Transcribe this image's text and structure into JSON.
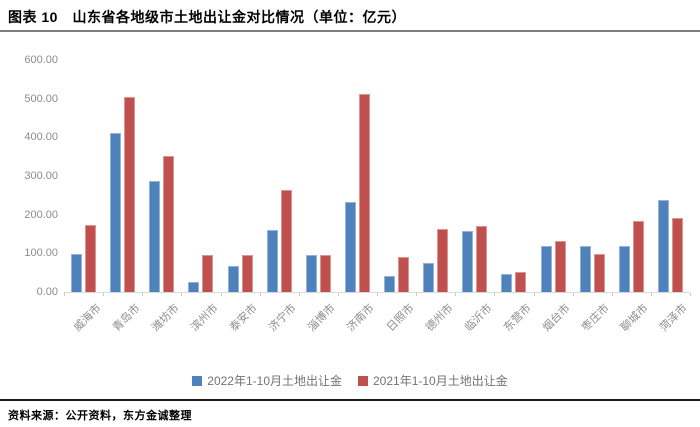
{
  "header": {
    "title": "图表 10　山东省各地级市土地出让金对比情况（单位：亿元）"
  },
  "footer": {
    "source": "资料来源：公开资料，东方金诚整理"
  },
  "chart_data": {
    "type": "bar",
    "title": "",
    "xlabel": "",
    "ylabel": "",
    "ylim": [
      0,
      600
    ],
    "ytick_step": 100,
    "y_ticks": [
      "600.00",
      "500.00",
      "400.00",
      "300.00",
      "200.00",
      "100.00",
      "0.00"
    ],
    "grid": false,
    "legend_position": "bottom",
    "categories": [
      "威海市",
      "青岛市",
      "潍坊市",
      "滨州市",
      "泰安市",
      "济宁市",
      "淄博市",
      "济南市",
      "日照市",
      "德州市",
      "临沂市",
      "东营市",
      "烟台市",
      "枣庄市",
      "聊城市",
      "菏泽市"
    ],
    "series": [
      {
        "name": "2022年1-10月土地出让金",
        "color": "#4F81BD",
        "border_color": "#95B3D7",
        "values": [
          99,
          411,
          286,
          27,
          67,
          161,
          96,
          233,
          41,
          76,
          159,
          46,
          118,
          120,
          120,
          239
        ]
      },
      {
        "name": "2021年1-10月土地出让金",
        "color": "#C0504D",
        "border_color": "#D99694",
        "values": [
          172,
          504,
          352,
          96,
          96,
          264,
          95,
          511,
          90,
          163,
          170,
          53,
          131,
          98,
          184,
          191
        ]
      }
    ]
  }
}
